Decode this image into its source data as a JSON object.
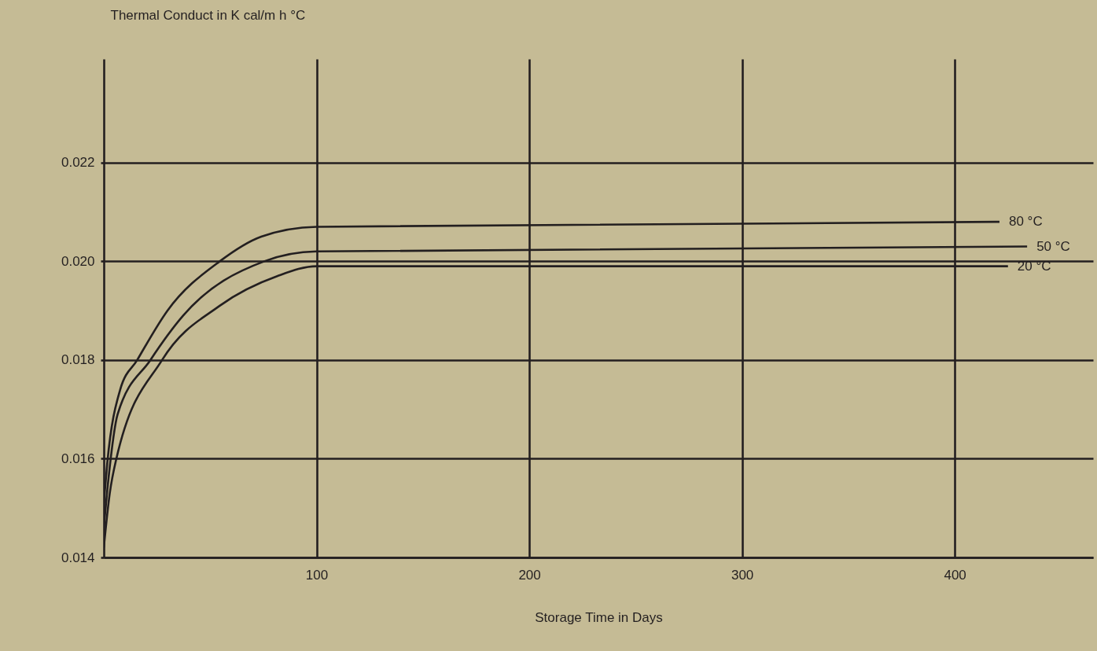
{
  "chart_data": {
    "type": "line",
    "xlabel": "Storage Time in Days",
    "ylabel": "Thermal Conduct in K cal/m h °C",
    "xlim": [
      0,
      465
    ],
    "xticks": [
      100,
      200,
      300,
      400
    ],
    "ylim": [
      0.014,
      0.0241
    ],
    "yticks": [
      {
        "value": 0.014,
        "label": "0.014"
      },
      {
        "value": 0.016,
        "label": "0.016"
      },
      {
        "value": 0.018,
        "label": "0.018"
      },
      {
        "value": 0.02,
        "label": "0.020"
      },
      {
        "value": 0.022,
        "label": "0.022"
      }
    ],
    "grid": true,
    "legend": false,
    "line_style": "solid",
    "series": [
      {
        "name": "80 °C",
        "color": "#231f20",
        "x": [
          0,
          1.6,
          7.7,
          15.7,
          29.9,
          54.5,
          74,
          100,
          421
        ],
        "values": [
          0.0151,
          0.0159,
          0.0174,
          0.018,
          0.019,
          0.02,
          0.0205,
          0.0207,
          0.0208
        ]
      },
      {
        "name": "50 °C",
        "color": "#231f20",
        "x": [
          0,
          2.2,
          6.5,
          21.9,
          37.3,
          75.4,
          100,
          434
        ],
        "values": [
          0.0146,
          0.0156,
          0.0169,
          0.018,
          0.0189,
          0.02,
          0.0202,
          0.0203
        ]
      },
      {
        "name": "20 °C",
        "color": "#231f20",
        "x": [
          0,
          2.8,
          5.9,
          27.4,
          54.5,
          81.5,
          100,
          425
        ],
        "values": [
          0.0142,
          0.0153,
          0.016,
          0.018,
          0.0191,
          0.0197,
          0.0199,
          0.0199
        ]
      }
    ]
  }
}
